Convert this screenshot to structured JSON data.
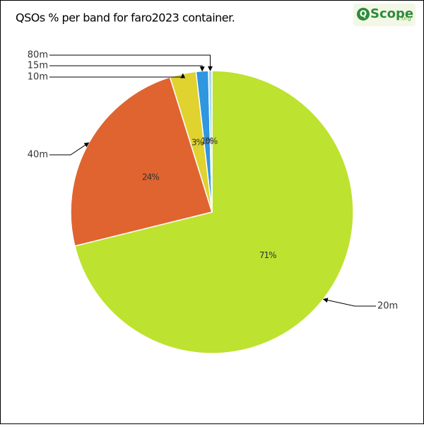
{
  "chart_data": {
    "type": "pie",
    "title": "QSOs % per band for faro2023 container.",
    "logo": {
      "letter": "Q",
      "text": "Scope",
      "suffix": ".org"
    },
    "categories": [
      "20m",
      "40m",
      "10m",
      "15m",
      "80m"
    ],
    "values": [
      71,
      24,
      3,
      1.4,
      0.4
    ],
    "value_labels": [
      "71%",
      "24%",
      "3%",
      "1%",
      "0%"
    ],
    "colors": [
      "#bde22f",
      "#e06430",
      "#e0d22f",
      "#2f96e0",
      "#a8d8f0"
    ]
  }
}
